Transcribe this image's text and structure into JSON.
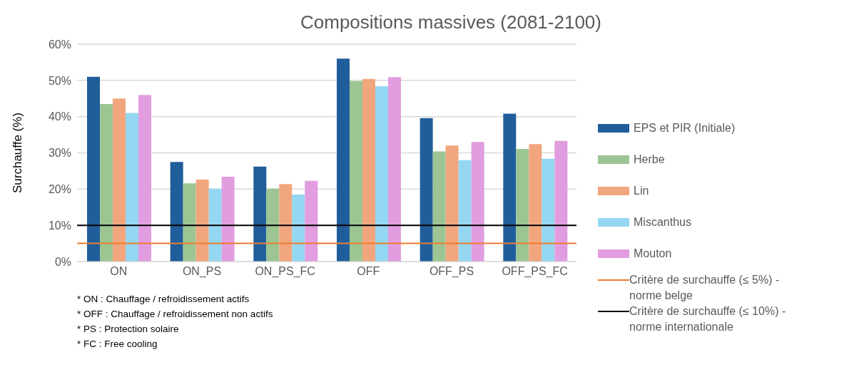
{
  "chart_data": {
    "type": "bar",
    "title": "Compositions massives (2081-2100)",
    "ylabel": "Surchauffe (%)",
    "categories": [
      "ON",
      "ON_PS",
      "ON_PS_FC",
      "OFF",
      "OFF_PS",
      "OFF_PS_FC"
    ],
    "series": [
      {
        "name": "EPS et PIR (Initiale)",
        "color": "#205e9b",
        "values": [
          51,
          27.5,
          26.2,
          56,
          39.6,
          40.8
        ]
      },
      {
        "name": "Herbe",
        "color": "#9dc593",
        "values": [
          43.5,
          21.6,
          20.1,
          49.8,
          30.4,
          31.1
        ]
      },
      {
        "name": "Lin",
        "color": "#f1a67e",
        "values": [
          45,
          22.6,
          21.4,
          50.4,
          32,
          32.4
        ]
      },
      {
        "name": "Miscanthus",
        "color": "#95d7f2",
        "values": [
          41,
          20.1,
          18.5,
          48.4,
          28,
          28.4
        ]
      },
      {
        "name": "Mouton",
        "color": "#e29de0",
        "values": [
          46,
          23.4,
          22.3,
          50.9,
          33,
          33.3
        ]
      }
    ],
    "ylim": [
      0,
      60
    ],
    "yticks": [
      {
        "value": 0,
        "label": "0%"
      },
      {
        "value": 10,
        "label": "10%"
      },
      {
        "value": 20,
        "label": "20%"
      },
      {
        "value": 30,
        "label": "30%"
      },
      {
        "value": 40,
        "label": "40%"
      },
      {
        "value": 50,
        "label": "50%"
      },
      {
        "value": 60,
        "label": "60%"
      }
    ],
    "grid": "y",
    "legend": "right",
    "ref_lines": [
      {
        "axis": "y",
        "value": 5,
        "label": "Critère de surchauffe (≤ 5%) - norme belge",
        "color": "#ed7d31"
      },
      {
        "axis": "y",
        "value": 10,
        "label": "Critère de surchauffe (≤ 10%) - norme internationale",
        "color": "#000000"
      }
    ],
    "annotations": [
      "* ON : Chauffage / refroidissement actifs",
      "* OFF : Chauffage / refroidissement non actifs",
      "* PS : Protection solaire",
      "* FC : Free cooling"
    ]
  }
}
